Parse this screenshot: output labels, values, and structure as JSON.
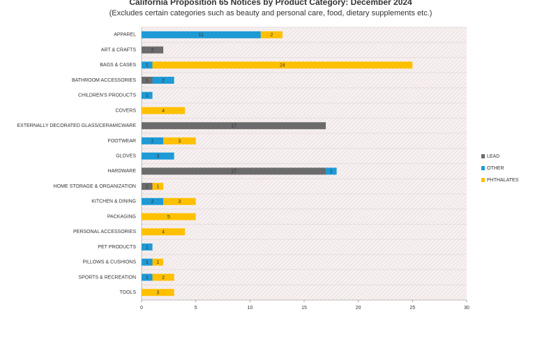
{
  "chart_data": {
    "type": "stacked-bar-horizontal",
    "title": "California Proposition 65 Notices by Product Category: December 2024",
    "subtitle": "(Excludes certain categories such as beauty and personal care, food, dietary supplements etc.)",
    "categories": [
      "APPAREL",
      "ART & CRAFTS",
      "BAGS & CASES",
      "BATHROOM ACCESSORIES",
      "CHILDREN'S PRODUCTS",
      "COVERS",
      "EXTERNALLY DECORATED GLASS/CERAMICWARE",
      "FOOTWEAR",
      "GLOVES",
      "HARDWARE",
      "HOME STORAGE & ORGANIZATION",
      "KITCHEN & DINING",
      "PACKAGING",
      "PERSONAL ACCESSORIES",
      "PET PRODUCTS",
      "PILLOWS & CUSHIONS",
      "SPORTS & RECREATION",
      "TOOLS"
    ],
    "series": [
      {
        "name": "LEAD",
        "color": "#6b6b6b",
        "values": [
          null,
          2,
          null,
          1,
          null,
          null,
          17,
          null,
          null,
          17,
          1,
          null,
          null,
          null,
          null,
          null,
          null,
          null
        ]
      },
      {
        "name": "OTHER",
        "color": "#1e9ad6",
        "values": [
          11,
          null,
          1,
          2,
          1,
          null,
          null,
          2,
          3,
          1,
          null,
          2,
          null,
          null,
          1,
          1,
          1,
          null
        ]
      },
      {
        "name": "PHTHALATES",
        "color": "#ffc000",
        "values": [
          2,
          null,
          24,
          null,
          null,
          4,
          null,
          3,
          null,
          null,
          1,
          3,
          5,
          4,
          null,
          1,
          2,
          3
        ]
      }
    ],
    "xlim": [
      0,
      30
    ],
    "xticks": [
      0,
      5,
      10,
      15,
      20,
      25,
      30
    ],
    "legend": "right"
  }
}
